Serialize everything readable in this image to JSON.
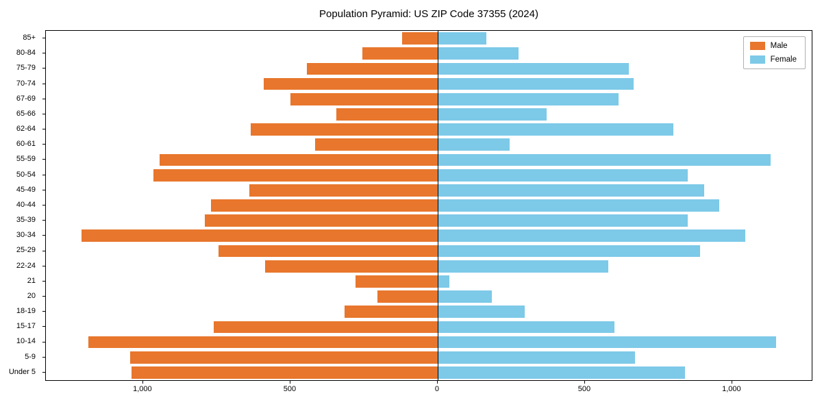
{
  "chart_data": {
    "type": "bar",
    "variant": "population-pyramid",
    "title": "Population Pyramid: US ZIP Code 37355 (2024)",
    "categories": [
      "85+",
      "80-84",
      "75-79",
      "70-74",
      "67-69",
      "65-66",
      "62-64",
      "60-61",
      "55-59",
      "50-54",
      "45-49",
      "40-44",
      "35-39",
      "30-34",
      "25-29",
      "22-24",
      "21",
      "20",
      "18-19",
      "15-17",
      "10-14",
      "5-9",
      "Under 5"
    ],
    "series": [
      {
        "name": "Male",
        "color": "#e8762c",
        "direction": "left",
        "values": [
          120,
          255,
          445,
          590,
          500,
          345,
          635,
          415,
          945,
          965,
          640,
          770,
          790,
          1210,
          745,
          585,
          280,
          205,
          315,
          760,
          1185,
          1045,
          1040
        ]
      },
      {
        "name": "Female",
        "color": "#7dc9e8",
        "direction": "right",
        "values": [
          165,
          275,
          650,
          665,
          615,
          370,
          800,
          245,
          1130,
          850,
          905,
          955,
          850,
          1045,
          890,
          580,
          40,
          185,
          295,
          600,
          1150,
          670,
          840
        ]
      }
    ],
    "xlim": [
      -1330,
      1270
    ],
    "xticks": [
      {
        "value": -1000,
        "label": "1,000"
      },
      {
        "value": -500,
        "label": "500"
      },
      {
        "value": 0,
        "label": "0"
      },
      {
        "value": 500,
        "label": "500"
      },
      {
        "value": 1000,
        "label": "1,000"
      }
    ],
    "xlabel": "",
    "ylabel": "",
    "grid": false,
    "legend_position": "upper right",
    "bar_relative_height": 0.8
  }
}
